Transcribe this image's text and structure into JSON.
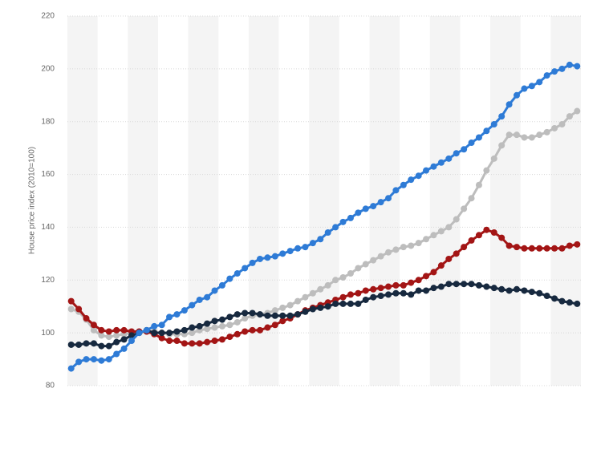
{
  "chart_data": {
    "type": "line",
    "y_label": "House price index (2010=100)",
    "categories": [
      null,
      null,
      null,
      null,
      null,
      null,
      null,
      null,
      null,
      null,
      null,
      null,
      null,
      null,
      null,
      null,
      null,
      null,
      null,
      null,
      null,
      null,
      null,
      null,
      null,
      null,
      null,
      null,
      null,
      null,
      null,
      null,
      null,
      null,
      null,
      null,
      null,
      null,
      null,
      null,
      null,
      null,
      null,
      null,
      null,
      null,
      null,
      null,
      null,
      null,
      null,
      null,
      null,
      null,
      null,
      null,
      null,
      null,
      null,
      null,
      null,
      null,
      null,
      null,
      null,
      null,
      null,
      null
    ],
    "series": [
      {
        "color": "#bdbdbd",
        "values": [
          109,
          108,
          105,
          101,
          99,
          98.5,
          99,
          99.5,
          100,
          100,
          100.5,
          100.5,
          100,
          99.5,
          99.5,
          99.5,
          100,
          101,
          101.5,
          102,
          102.5,
          103,
          104,
          105.5,
          106.5,
          107,
          107.5,
          108.5,
          109.5,
          110.5,
          112,
          113.5,
          115,
          116.5,
          118,
          120,
          121,
          122.5,
          124.5,
          126,
          127.5,
          129,
          130.5,
          131.5,
          132.5,
          133,
          134,
          135.5,
          137,
          138.5,
          140,
          143,
          147,
          151,
          156,
          161.5,
          166,
          171,
          175,
          175,
          174,
          174,
          175,
          176,
          177.5,
          179,
          182,
          184
        ]
      },
      {
        "color": "#a31515",
        "values": [
          112,
          109,
          105.5,
          103,
          101,
          100.5,
          101,
          101,
          100.5,
          100.5,
          100.5,
          99.5,
          98,
          97,
          97,
          96,
          96,
          96,
          96.5,
          97,
          97.5,
          98.5,
          99.5,
          100.5,
          101,
          101,
          102,
          103,
          104.5,
          105.5,
          107,
          108.5,
          109.5,
          110.5,
          111.5,
          112.5,
          113.5,
          114.5,
          115,
          116,
          116.5,
          117,
          117.5,
          118,
          118,
          119,
          120,
          121.5,
          123,
          125.5,
          128,
          130,
          132.5,
          135,
          137,
          139,
          138,
          136,
          133,
          132.5,
          132,
          132,
          132,
          132,
          132,
          132,
          133,
          133.5
        ]
      },
      {
        "color": "#17293f",
        "values": [
          95.5,
          95.5,
          96,
          96,
          95,
          95,
          96.5,
          97.5,
          99,
          100,
          101,
          100,
          100,
          100,
          100.5,
          101,
          102,
          102.5,
          103.5,
          104.5,
          105,
          106,
          107,
          107.5,
          107.5,
          107,
          106.5,
          106.5,
          106.5,
          106.5,
          107,
          108,
          109,
          109.5,
          110,
          111,
          111,
          111,
          111,
          112.5,
          113.5,
          114,
          114.5,
          115,
          115,
          114.5,
          116,
          116,
          117,
          117.5,
          118.5,
          118.5,
          118.5,
          118.5,
          118,
          117.5,
          117,
          116.5,
          116,
          116.5,
          116,
          115.5,
          115,
          114,
          113,
          112,
          111.5,
          111
        ]
      },
      {
        "color": "#2e7bd6",
        "values": [
          86.5,
          89,
          90,
          90,
          89.5,
          90,
          92,
          94,
          97,
          100,
          101,
          102.5,
          103,
          106,
          107,
          108.5,
          110.5,
          112.5,
          113.5,
          116,
          118,
          120.5,
          122.5,
          124.5,
          126.5,
          128,
          128.5,
          129,
          130,
          131,
          132,
          132.5,
          134,
          135.5,
          138,
          140,
          142,
          143.5,
          145.5,
          147,
          148,
          149.5,
          151,
          154,
          156,
          158,
          159.5,
          161.5,
          163,
          164.5,
          166,
          168,
          169.5,
          172,
          174,
          176.5,
          179,
          182,
          186.5,
          190,
          192.5,
          193.5,
          195,
          197.5,
          199,
          200,
          201.5,
          201
        ]
      }
    ],
    "ylim": [
      80,
      220
    ],
    "yticks": [
      80,
      100,
      120,
      140,
      160,
      180,
      200,
      220
    ],
    "grid": true
  }
}
